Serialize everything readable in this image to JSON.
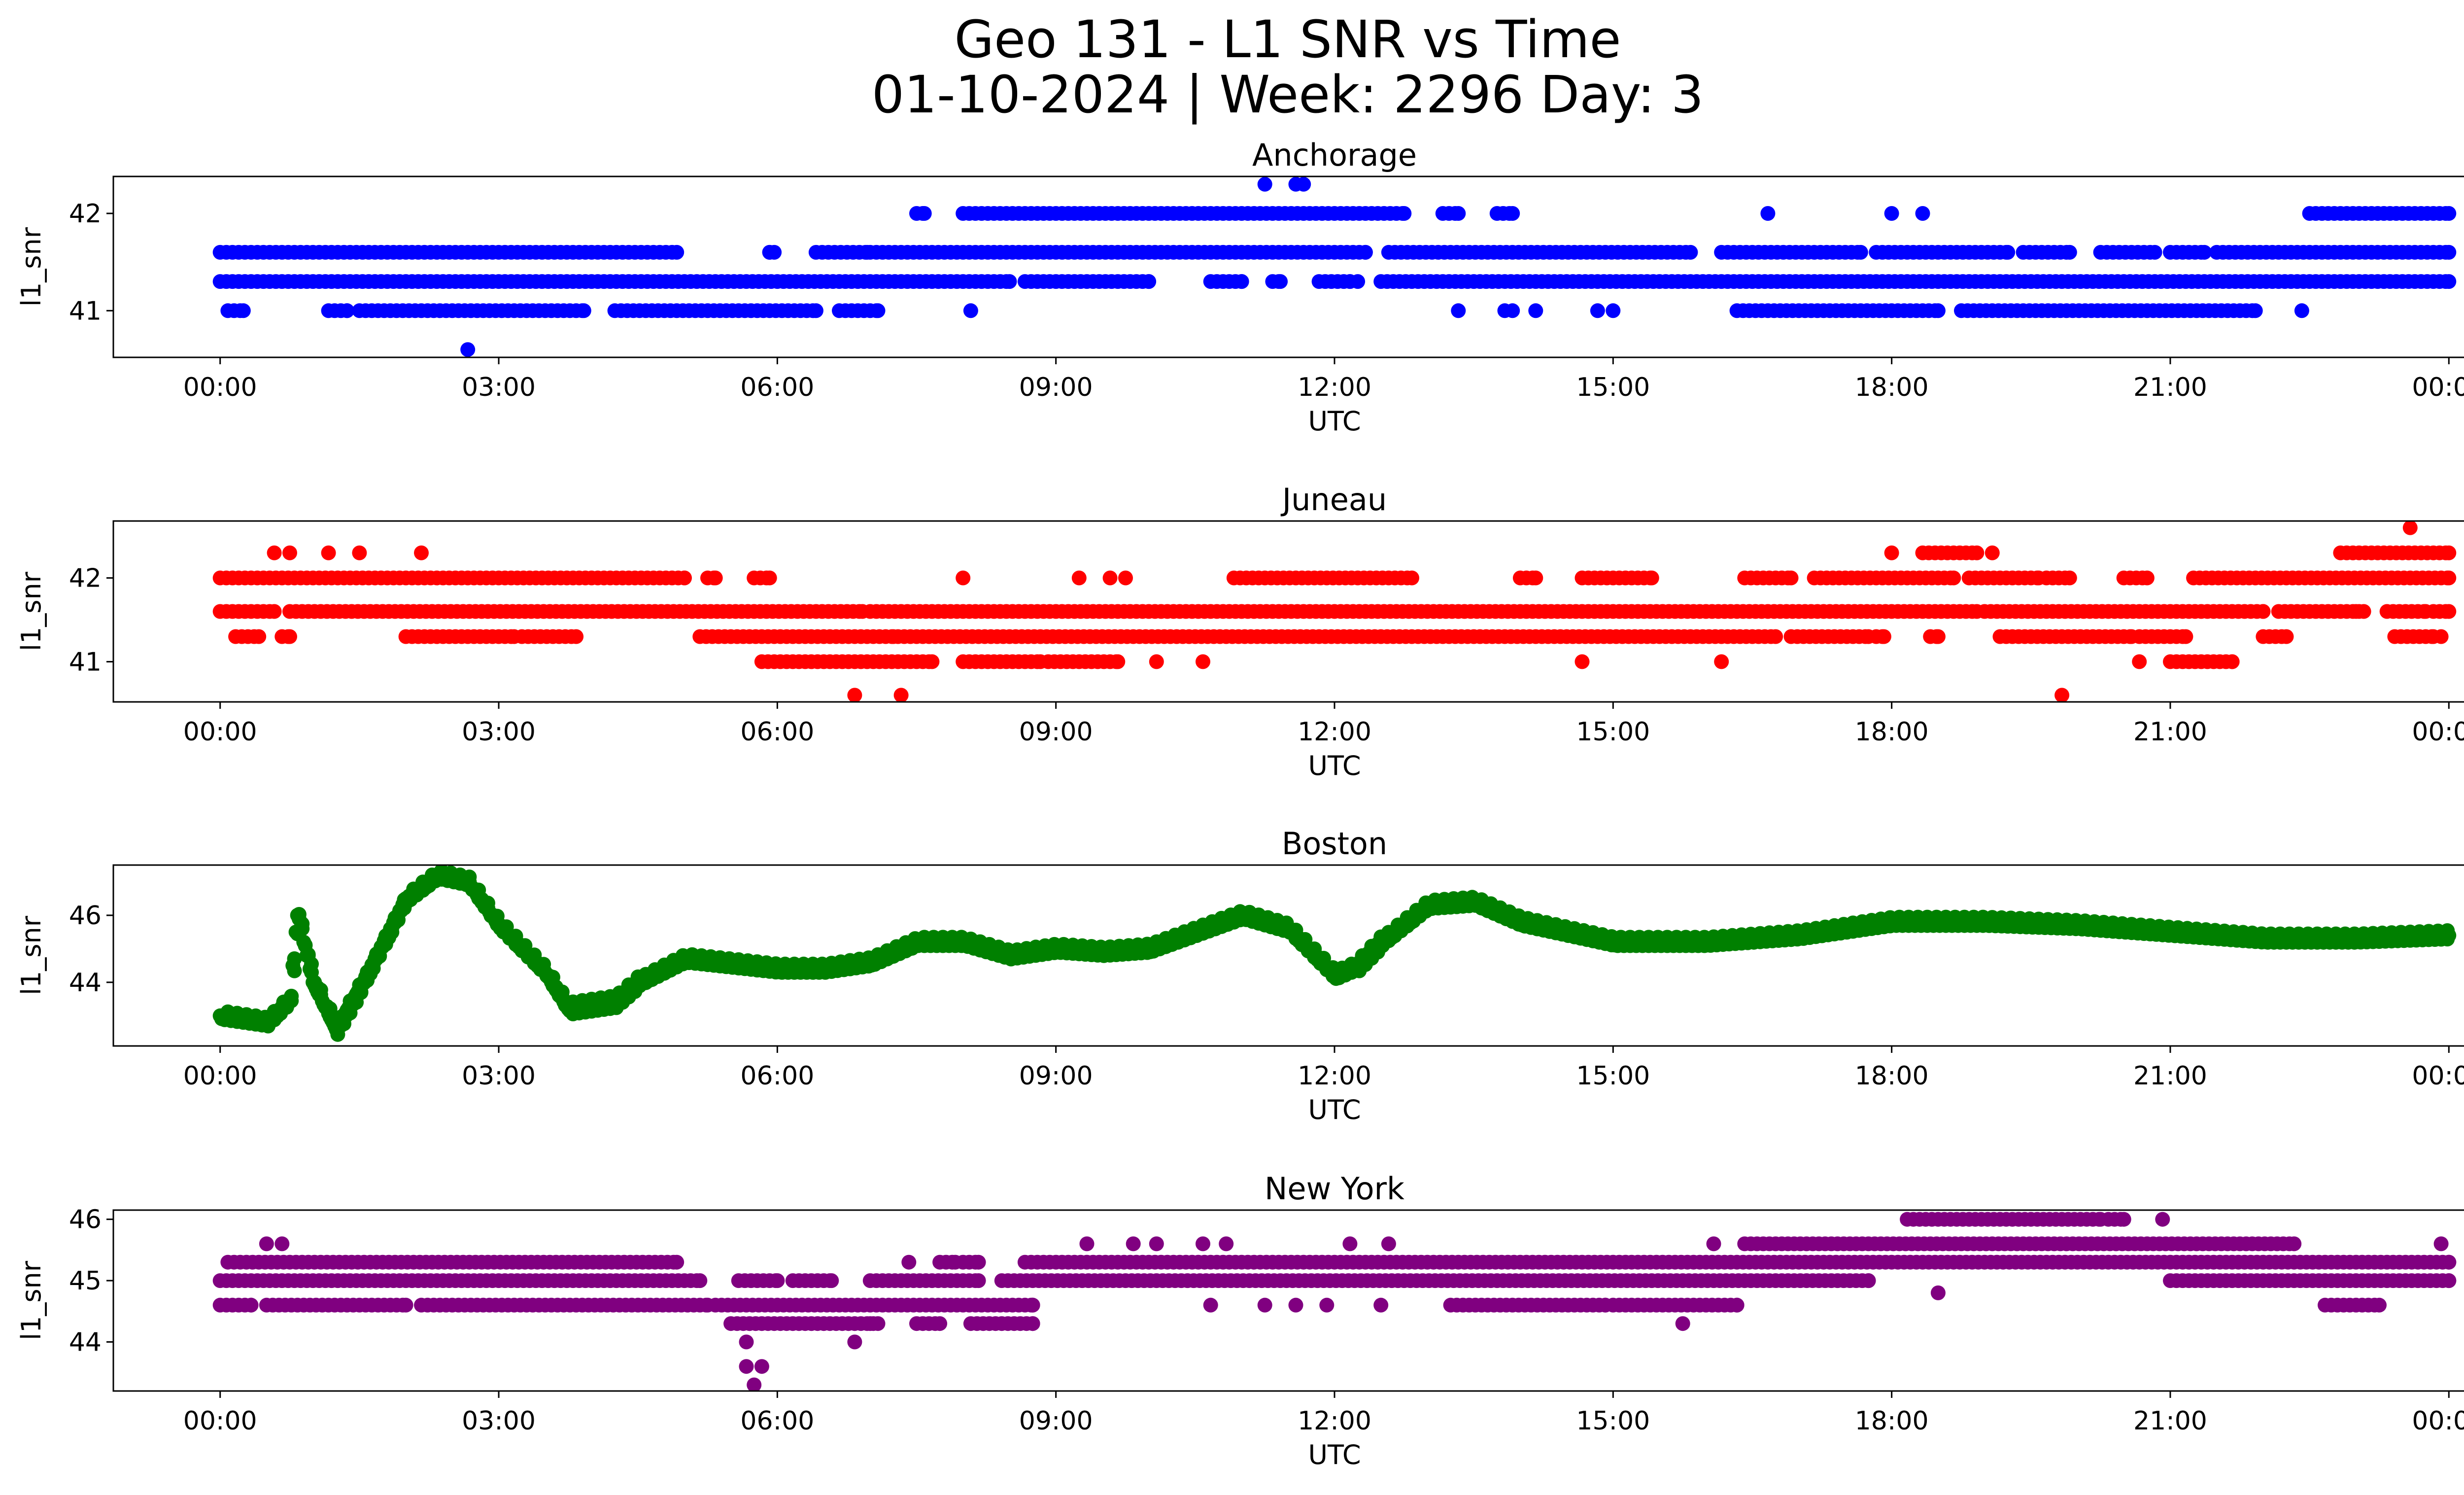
{
  "figure": {
    "title_line1": "Geo 131 - L1 SNR vs Time",
    "title_line2": "01-10-2024 | Week: 2296 Day: 3"
  },
  "chart_data": [
    {
      "type": "scatter",
      "title": "Anchorage",
      "xlabel": "UTC",
      "ylabel": "l1_snr",
      "color": "#0000ff",
      "xlim": [
        "-01:09",
        "25:09"
      ],
      "ylim": [
        40.52,
        42.38
      ],
      "xticks": [
        "00:00",
        "03:00",
        "06:00",
        "09:00",
        "12:00",
        "15:00",
        "18:00",
        "21:00",
        "00:00"
      ],
      "yticks": [
        41,
        42
      ],
      "levels": [
        {
          "y": 41.6,
          "x_ranges": [
            [
              "00:00",
              "04:55"
            ],
            [
              "05:55",
              "05:58"
            ],
            [
              "06:25",
              "06:58"
            ],
            [
              "07:00",
              "12:20"
            ],
            [
              "12:35",
              "15:50"
            ],
            [
              "16:10",
              "17:40"
            ],
            [
              "17:50",
              "19:15"
            ],
            [
              "19:25",
              "19:55"
            ],
            [
              "20:15",
              "20:50"
            ],
            [
              "21:00",
              "21:22"
            ],
            [
              "21:30",
              "24:00"
            ]
          ]
        },
        {
          "y": 41.3,
          "x_ranges": [
            [
              "00:00",
              "08:30"
            ],
            [
              "08:40",
              "10:00"
            ],
            [
              "10:40",
              "11:00"
            ],
            [
              "11:20",
              "11:25"
            ],
            [
              "11:50",
              "12:10"
            ],
            [
              "12:30",
              "24:00"
            ]
          ]
        },
        {
          "y": 41.0,
          "x_ranges": [
            [
              "00:05",
              "00:15"
            ],
            [
              "01:10",
              "01:22"
            ],
            [
              "01:30",
              "03:55"
            ],
            [
              "04:15",
              "06:25"
            ],
            [
              "06:40",
              "07:05"
            ],
            [
              "16:20",
              "18:30"
            ],
            [
              "18:45",
              "21:55"
            ]
          ]
        },
        {
          "y": 42.0,
          "x_ranges": [
            [
              "07:30",
              "07:35"
            ],
            [
              "08:00",
              "12:45"
            ],
            [
              "13:10",
              "13:20"
            ],
            [
              "13:45",
              "13:55"
            ],
            [
              "22:30",
              "24:00"
            ]
          ]
        }
      ],
      "points": [
        [
          "02:40",
          40.6
        ],
        [
          "11:15",
          42.3
        ],
        [
          "11:35",
          42.3
        ],
        [
          "11:40",
          42.3
        ],
        [
          "05:55",
          41.6
        ],
        [
          "08:05",
          41.0
        ],
        [
          "13:20",
          41.0
        ],
        [
          "13:50",
          41.0
        ],
        [
          "13:55",
          41.0
        ],
        [
          "14:10",
          41.0
        ],
        [
          "14:50",
          41.0
        ],
        [
          "15:00",
          41.0
        ],
        [
          "16:40",
          42.0
        ],
        [
          "18:00",
          42.0
        ],
        [
          "18:20",
          42.0
        ],
        [
          "22:25",
          41.0
        ],
        [
          "12:15",
          41.3
        ]
      ]
    },
    {
      "type": "scatter",
      "title": "Juneau",
      "xlabel": "UTC",
      "ylabel": "l1_snr",
      "color": "#ff0000",
      "xlim": [
        "-01:09",
        "25:09"
      ],
      "ylim": [
        40.52,
        42.68
      ],
      "xticks": [
        "00:00",
        "03:00",
        "06:00",
        "09:00",
        "12:00",
        "15:00",
        "18:00",
        "21:00",
        "00:00"
      ],
      "yticks": [
        41,
        42
      ],
      "levels": [
        {
          "y": 42.0,
          "x_ranges": [
            [
              "00:00",
              "05:00"
            ],
            [
              "05:15",
              "05:20"
            ],
            [
              "05:45",
              "05:55"
            ],
            [
              "10:55",
              "12:50"
            ],
            [
              "14:00",
              "14:10"
            ],
            [
              "14:40",
              "15:25"
            ],
            [
              "16:25",
              "16:55"
            ],
            [
              "17:10",
              "18:40"
            ],
            [
              "18:50",
              "19:35"
            ],
            [
              "19:40",
              "19:55"
            ],
            [
              "20:30",
              "20:45"
            ],
            [
              "21:15",
              "24:00"
            ]
          ]
        },
        {
          "y": 41.6,
          "x_ranges": [
            [
              "00:00",
              "00:35"
            ],
            [
              "00:45",
              "06:55"
            ],
            [
              "07:00",
              "18:55"
            ],
            [
              "19:00",
              "22:00"
            ],
            [
              "22:10",
              "23:05"
            ],
            [
              "23:20",
              "23:45"
            ],
            [
              "23:50",
              "24:00"
            ]
          ]
        },
        {
          "y": 41.3,
          "x_ranges": [
            [
              "00:10",
              "00:25"
            ],
            [
              "00:40",
              "00:45"
            ],
            [
              "02:00",
              "03:10"
            ],
            [
              "03:15",
              "03:50"
            ],
            [
              "05:10",
              "16:45"
            ],
            [
              "16:55",
              "17:45"
            ],
            [
              "17:50",
              "17:55"
            ],
            [
              "18:25",
              "18:30"
            ],
            [
              "19:10",
              "20:35"
            ],
            [
              "20:40",
              "21:10"
            ],
            [
              "22:00",
              "22:15"
            ],
            [
              "23:25",
              "23:50"
            ]
          ]
        },
        {
          "y": 41.0,
          "x_ranges": [
            [
              "05:50",
              "07:40"
            ],
            [
              "08:00",
              "08:50"
            ],
            [
              "08:55",
              "09:40"
            ],
            [
              "21:00",
              "21:40"
            ]
          ]
        },
        {
          "y": 42.3,
          "x_ranges": [
            [
              "22:50",
              "24:00"
            ],
            [
              "18:20",
              "18:55"
            ]
          ]
        }
      ],
      "points": [
        [
          "00:35",
          42.3
        ],
        [
          "00:45",
          42.3
        ],
        [
          "01:10",
          42.3
        ],
        [
          "01:30",
          42.3
        ],
        [
          "02:10",
          42.3
        ],
        [
          "18:00",
          42.3
        ],
        [
          "19:05",
          42.3
        ],
        [
          "06:50",
          40.6
        ],
        [
          "07:20",
          40.6
        ],
        [
          "19:50",
          40.6
        ],
        [
          "23:35",
          42.6
        ],
        [
          "08:00",
          42.0
        ],
        [
          "09:15",
          42.0
        ],
        [
          "09:35",
          42.0
        ],
        [
          "09:45",
          42.0
        ],
        [
          "10:05",
          41.0
        ],
        [
          "10:35",
          41.0
        ],
        [
          "14:40",
          41.0
        ],
        [
          "16:10",
          41.0
        ],
        [
          "20:40",
          41.0
        ],
        [
          "23:00",
          41.6
        ],
        [
          "23:55",
          41.3
        ],
        [
          "07:15",
          41.3
        ]
      ]
    },
    {
      "type": "line",
      "title": "Boston",
      "xlabel": "UTC",
      "ylabel": "l1_snr",
      "color": "#008000",
      "xlim": [
        "-01:09",
        "25:09"
      ],
      "ylim": [
        42.1,
        47.5
      ],
      "xticks": [
        "00:00",
        "03:00",
        "06:00",
        "09:00",
        "12:00",
        "15:00",
        "18:00",
        "21:00",
        "00:00"
      ],
      "yticks": [
        44,
        46
      ],
      "x": [
        "00:00",
        "00:30",
        "00:45",
        "00:50",
        "01:00",
        "01:15",
        "01:30",
        "02:00",
        "02:20",
        "02:40",
        "03:00",
        "03:30",
        "03:45",
        "04:15",
        "04:30",
        "05:00",
        "06:00",
        "06:30",
        "07:00",
        "07:30",
        "08:00",
        "08:30",
        "09:00",
        "09:30",
        "10:00",
        "10:30",
        "11:00",
        "11:30",
        "12:00",
        "12:15",
        "12:30",
        "13:00",
        "13:30",
        "14:00",
        "15:00",
        "16:00",
        "17:00",
        "17:30",
        "18:00",
        "19:00",
        "20:00",
        "21:00",
        "22:00",
        "23:00",
        "24:00"
      ],
      "y": [
        43.0,
        42.8,
        43.5,
        46.0,
        44.0,
        42.6,
        43.8,
        46.5,
        47.2,
        47.0,
        45.7,
        44.3,
        43.2,
        43.4,
        44.0,
        44.7,
        44.4,
        44.4,
        44.6,
        45.2,
        45.2,
        44.8,
        45.0,
        44.9,
        45.0,
        45.5,
        46.0,
        45.6,
        44.2,
        44.5,
        45.2,
        46.3,
        46.4,
        45.8,
        45.2,
        45.2,
        45.4,
        45.6,
        45.8,
        45.8,
        45.7,
        45.5,
        45.3,
        45.3,
        45.4
      ],
      "spread": 0.35
    },
    {
      "type": "scatter",
      "title": "New York",
      "xlabel": "UTC",
      "ylabel": "l1_snr",
      "color": "#800080",
      "xlim": [
        "-01:09",
        "25:09"
      ],
      "ylim": [
        43.2,
        46.15
      ],
      "xticks": [
        "00:00",
        "03:00",
        "06:00",
        "09:00",
        "12:00",
        "15:00",
        "18:00",
        "21:00",
        "00:00"
      ],
      "yticks": [
        44,
        45,
        46
      ],
      "levels": [
        {
          "y": 45.3,
          "x_ranges": [
            [
              "00:05",
              "04:55"
            ],
            [
              "07:45",
              "07:55"
            ],
            [
              "08:00",
              "08:10"
            ],
            [
              "08:40",
              "24:00"
            ]
          ]
        },
        {
          "y": 45.0,
          "x_ranges": [
            [
              "00:00",
              "05:10"
            ],
            [
              "05:35",
              "06:00"
            ],
            [
              "06:10",
              "06:35"
            ],
            [
              "07:00",
              "08:10"
            ],
            [
              "08:25",
              "17:45"
            ],
            [
              "21:00",
              "24:00"
            ]
          ]
        },
        {
          "y": 44.6,
          "x_ranges": [
            [
              "00:00",
              "00:20"
            ],
            [
              "00:30",
              "02:00"
            ],
            [
              "02:10",
              "05:15"
            ],
            [
              "05:20",
              "08:45"
            ],
            [
              "13:15",
              "14:55"
            ],
            [
              "15:00",
              "16:20"
            ],
            [
              "22:40",
              "23:15"
            ]
          ]
        },
        {
          "y": 44.3,
          "x_ranges": [
            [
              "05:30",
              "07:05"
            ],
            [
              "07:30",
              "07:45"
            ],
            [
              "08:05",
              "08:45"
            ]
          ]
        },
        {
          "y": 45.6,
          "x_ranges": [
            [
              "16:25",
              "22:20"
            ]
          ]
        },
        {
          "y": 46.0,
          "x_ranges": [
            [
              "18:10",
              "20:15"
            ],
            [
              "20:20",
              "20:30"
            ]
          ]
        }
      ],
      "points": [
        [
          "00:30",
          45.6
        ],
        [
          "00:40",
          45.6
        ],
        [
          "05:40",
          44.0
        ],
        [
          "05:40",
          43.6
        ],
        [
          "05:45",
          43.3
        ],
        [
          "05:50",
          43.6
        ],
        [
          "06:50",
          44.0
        ],
        [
          "07:25",
          45.3
        ],
        [
          "08:45",
          44.6
        ],
        [
          "09:20",
          45.6
        ],
        [
          "09:50",
          45.6
        ],
        [
          "10:05",
          45.6
        ],
        [
          "10:35",
          45.6
        ],
        [
          "10:50",
          45.6
        ],
        [
          "12:10",
          45.6
        ],
        [
          "12:35",
          45.6
        ],
        [
          "10:40",
          44.6
        ],
        [
          "11:15",
          44.6
        ],
        [
          "11:35",
          44.6
        ],
        [
          "11:55",
          44.6
        ],
        [
          "12:30",
          44.6
        ],
        [
          "15:45",
          44.3
        ],
        [
          "16:05",
          45.6
        ],
        [
          "18:30",
          44.8
        ],
        [
          "23:55",
          45.6
        ],
        [
          "20:55",
          46.0
        ],
        [
          "07:00",
          44.3
        ]
      ]
    }
  ]
}
